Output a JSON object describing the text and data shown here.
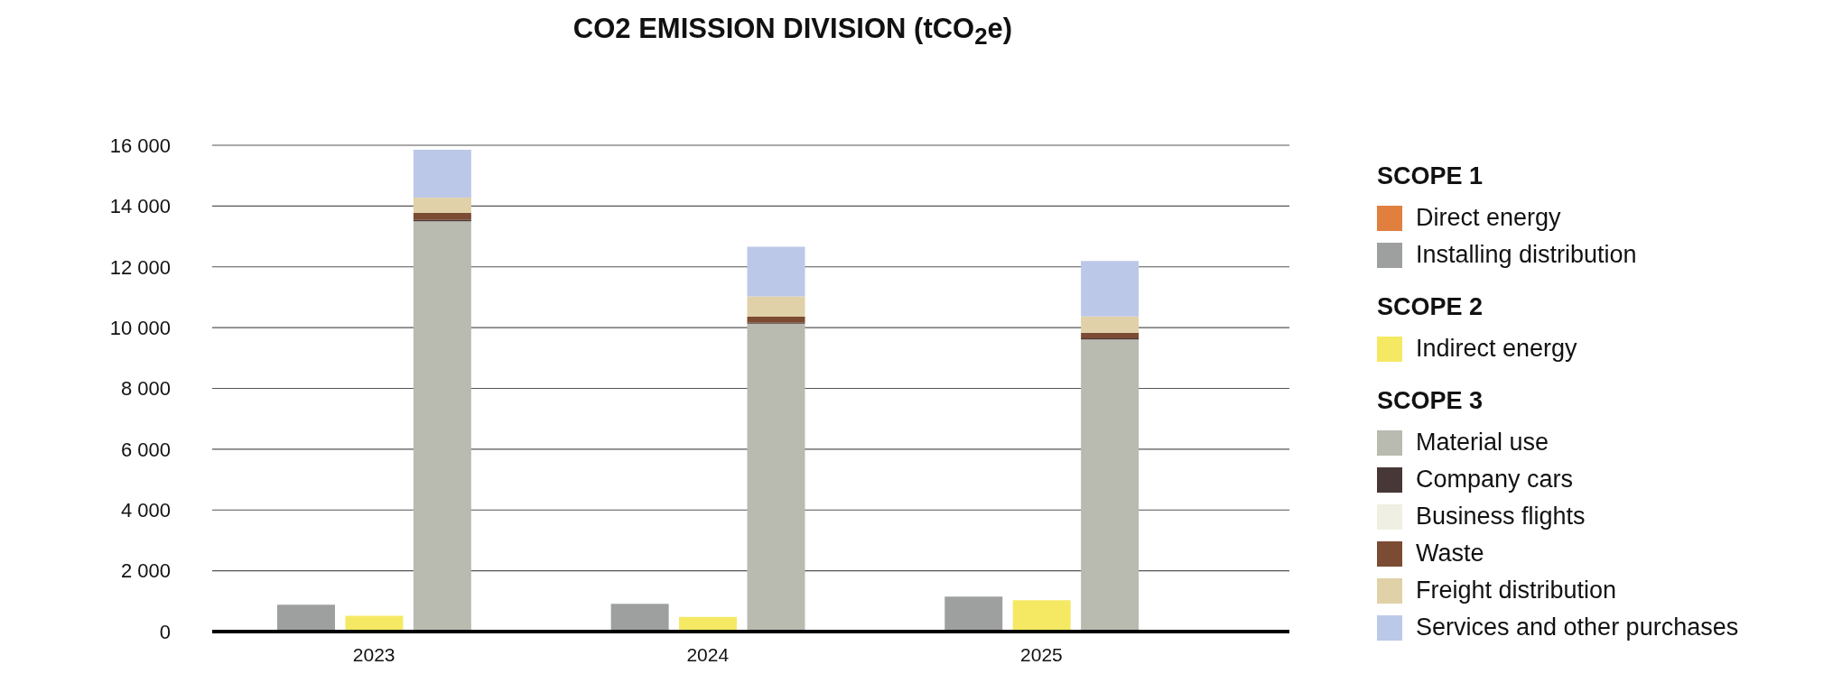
{
  "chart_data": {
    "type": "bar",
    "title": "CO2 EMISSION DIVISION (tCO$_{2}$e)",
    "annotations": [
      "SCOPE 1",
      "SCOPE 2",
      "SCOPE 3"
    ],
    "categories": [
      null,
      "2023",
      null,
      null,
      "2024",
      null,
      null,
      "2025",
      null
    ],
    "stacked": true,
    "grid": "y",
    "legend": "right",
    "ylim": [
      0,
      16000
    ],
    "yticks": [
      0,
      {
        "value": 2000,
        "label": "2 000"
      },
      {
        "value": 4000,
        "label": "4 000"
      },
      {
        "value": 6000,
        "label": "6 000"
      },
      {
        "value": 8000,
        "label": "8 000"
      },
      {
        "value": 10000,
        "label": "10 000"
      },
      {
        "value": 12000,
        "label": "12 000"
      },
      {
        "value": 14000,
        "label": "14 000"
      },
      {
        "value": 16000,
        "label": "16 000"
      }
    ],
    "series": [
      {
        "name": "Direct energy",
        "color": "#e07f3e",
        "values": [
          0,
          null,
          null,
          0,
          null,
          null,
          0,
          null,
          null
        ]
      },
      {
        "name": "Installing distribution",
        "color": "#9da09f",
        "values": [
          880,
          null,
          null,
          910,
          null,
          null,
          1150,
          null,
          null
        ]
      },
      {
        "name": "Indirect energy",
        "color": "#f5e964",
        "values": [
          null,
          520,
          null,
          null,
          480,
          null,
          null,
          1030,
          null
        ]
      },
      {
        "name": "Material use",
        "color": "#b9bab0",
        "values": [
          null,
          null,
          13500,
          null,
          null,
          10130,
          null,
          null,
          9610
        ]
      },
      {
        "name": "Company cars",
        "color": "#483737",
        "values": [
          null,
          null,
          40,
          null,
          null,
          30,
          null,
          null,
          40
        ]
      },
      {
        "name": "Business flights",
        "color": "#f0efe4",
        "values": [
          null,
          null,
          null,
          null,
          null,
          null,
          null,
          null,
          null
        ]
      },
      {
        "name": "Waste",
        "color": "#7b4b34",
        "values": [
          null,
          null,
          230,
          null,
          null,
          200,
          null,
          null,
          180
        ]
      },
      {
        "name": "Freight distribution",
        "color": "#e0d1a8",
        "values": [
          null,
          null,
          510,
          null,
          null,
          670,
          null,
          null,
          540
        ]
      },
      {
        "name": "Services and other purchases",
        "color": "#bcc8e8",
        "values": [
          null,
          null,
          1570,
          null,
          null,
          1630,
          null,
          null,
          1820
        ]
      }
    ]
  }
}
